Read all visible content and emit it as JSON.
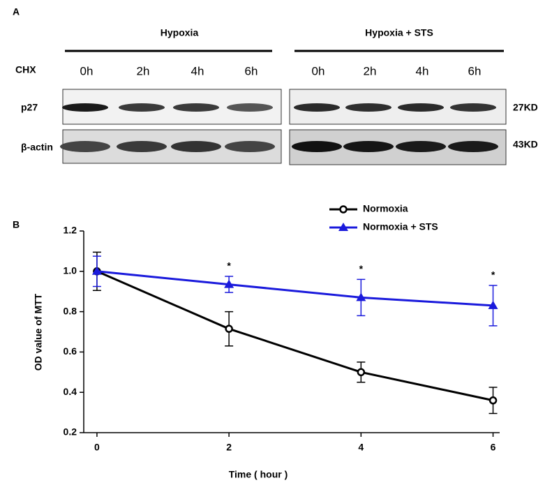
{
  "panel_a": {
    "label": "A",
    "groups": [
      "Hypoxia",
      "Hypoxia + STS"
    ],
    "treatment": "CHX",
    "lanes": [
      "0h",
      "2h",
      "4h",
      "6h",
      "0h",
      "2h",
      "4h",
      "6h"
    ],
    "rows": [
      "p27",
      "β-actin"
    ],
    "sizes": [
      "27KD",
      "43KD"
    ]
  },
  "chart_data": {
    "type": "line",
    "panel_label": "B",
    "x_label": "Time ( hour )",
    "y_label": "OD value of MTT",
    "x": [
      0,
      2,
      4,
      6
    ],
    "series": [
      {
        "name": "Normoxia",
        "color": "#000000",
        "marker": "open-circle",
        "values": [
          1.0,
          0.715,
          0.5,
          0.36
        ],
        "errors": [
          0.095,
          0.085,
          0.05,
          0.065
        ]
      },
      {
        "name": "Normoxia + STS",
        "color": "#1a1adc",
        "marker": "triangle",
        "values": [
          1.0,
          0.935,
          0.87,
          0.83
        ],
        "errors": [
          0.075,
          0.04,
          0.09,
          0.1
        ]
      }
    ],
    "annotations": [
      {
        "x": 2,
        "text": "*"
      },
      {
        "x": 4,
        "text": "*"
      },
      {
        "x": 6,
        "text": "*"
      }
    ],
    "xlim": [
      -0.2,
      6.1
    ],
    "xticks": [
      0,
      2,
      4,
      6
    ],
    "ylim": [
      0.2,
      1.2
    ],
    "yticks": [
      0.2,
      0.4,
      0.6,
      0.8,
      {
        "value": 1,
        "label": "1.0"
      },
      1.2
    ],
    "legend": "upper right"
  }
}
